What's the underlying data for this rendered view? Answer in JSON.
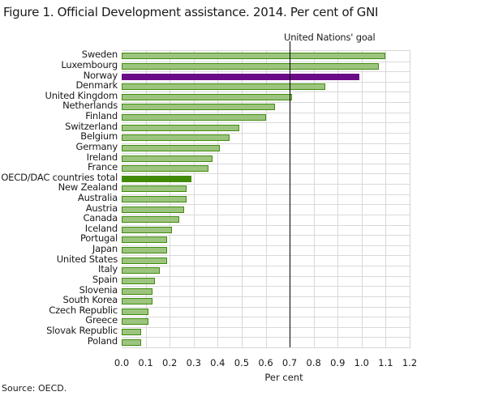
{
  "title": "Figure 1. Official Development assistance. 2014. Per cent of GNI",
  "source": "Source: OECD.",
  "colors": {
    "default_bar": "#9dc47f",
    "default_border": "#3e8c0c",
    "norway": "#6b0a87",
    "oecd_total": "#418a04"
  },
  "chart_data": {
    "type": "bar",
    "orientation": "horizontal",
    "title": "Figure 1. Official Development assistance. 2014. Per cent of GNI",
    "xlabel": "Per cent",
    "ylabel": "",
    "xlim": [
      0,
      1.2
    ],
    "xticks": [
      "0.0",
      "0.1",
      "0.2",
      "0.3",
      "0.4",
      "0.5",
      "0.6",
      "0.7",
      "0.8",
      "0.9",
      "1.0",
      "1.1",
      "1.2"
    ],
    "grid": true,
    "reference_line": {
      "value": 0.7,
      "label": "United Nations' goal"
    },
    "categories": [
      "Sweden",
      "Luxembourg",
      "Norway",
      "Denmark",
      "United Kingdom",
      "Netherlands",
      "Finland",
      "Switzerland",
      "Belgium",
      "Germany",
      "Ireland",
      "France",
      "OECD/DAC countries total",
      "New Zealand",
      "Australia",
      "Austria",
      "Canada",
      "Iceland",
      "Portugal",
      "Japan",
      "United States",
      "Italy",
      "Spain",
      "Slovenia",
      "South Korea",
      "Czech Republic",
      "Greece",
      "Slovak Republic",
      "Poland"
    ],
    "values": [
      1.1,
      1.07,
      0.99,
      0.85,
      0.71,
      0.64,
      0.6,
      0.49,
      0.45,
      0.41,
      0.38,
      0.36,
      0.29,
      0.27,
      0.27,
      0.26,
      0.24,
      0.21,
      0.19,
      0.19,
      0.19,
      0.16,
      0.14,
      0.13,
      0.13,
      0.11,
      0.11,
      0.08,
      0.08
    ],
    "highlight": {
      "Norway": "#6b0a87",
      "OECD/DAC countries total": "#418a04"
    }
  }
}
